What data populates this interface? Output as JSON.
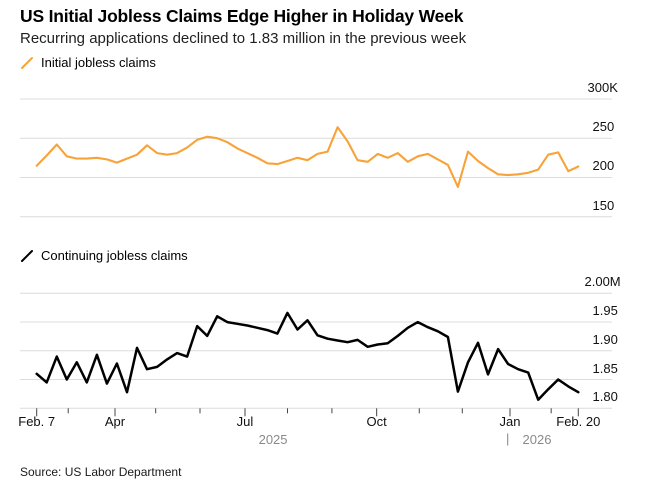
{
  "header": {
    "title": "US Initial Jobless Claims Edge Higher in Holiday Week",
    "subtitle": "Recurring applications declined to 1.83 million in the previous week"
  },
  "source": "Source: US Labor Department",
  "colors": {
    "initial_line": "#F7A33A",
    "continuing_line": "#000000",
    "grid": "#DCDCDC",
    "tick": "#444444",
    "year_text": "#8A8A8A"
  },
  "xaxis": {
    "tick_labels": [
      {
        "label": "Feb. 7",
        "t": 0.0
      },
      {
        "label": "Apr",
        "t": 0.1446
      },
      {
        "label": "Jul",
        "t": 0.3846
      },
      {
        "label": "Oct",
        "t": 0.6277
      },
      {
        "label": "Jan",
        "t": 0.8739
      },
      {
        "label": "Feb. 20",
        "t": 1.0
      }
    ],
    "minor_ticks": [
      0.0582,
      0.2197,
      0.3015,
      0.4631,
      0.5451,
      0.7064,
      0.7858,
      0.9499
    ],
    "years": [
      {
        "label": "2025",
        "t": 0.4364
      },
      {
        "label": "2026",
        "t": 0.9238
      }
    ],
    "year_separator": "|",
    "year_separator_t": 0.8665
  },
  "chart_data": [
    {
      "type": "line",
      "name": "Initial jobless claims",
      "unit": "thousands of claims (K)",
      "frequency": "weekly",
      "x_start": "Feb. 7, 2025",
      "x_end": "Feb. 20, 2026",
      "color": "#F7A33A",
      "ylim": [
        150,
        300
      ],
      "grid": true,
      "legend_position": "top-left",
      "yticks": [
        {
          "value": 300,
          "label": "300K"
        },
        {
          "value": 250,
          "label": "250"
        },
        {
          "value": 200,
          "label": "200"
        },
        {
          "value": 150,
          "label": "150"
        }
      ],
      "values": [
        215,
        228,
        242,
        227,
        224,
        224,
        225,
        223,
        219,
        224,
        229,
        241,
        231,
        229,
        231,
        238,
        248,
        252,
        250,
        245,
        237,
        231,
        225,
        218,
        217,
        221,
        225,
        222,
        230,
        233,
        264,
        246,
        222,
        220,
        230,
        225,
        231,
        220,
        227,
        230,
        223,
        216,
        188,
        233,
        221,
        212,
        204,
        203,
        204,
        206,
        210,
        229,
        232,
        208,
        214
      ]
    },
    {
      "type": "line",
      "name": "Continuing jobless claims",
      "unit": "millions of claims (M)",
      "frequency": "weekly",
      "x_start": "Feb. 7, 2025",
      "x_end": "Feb. 20, 2026",
      "color": "#000000",
      "ylim": [
        1.8,
        2.0
      ],
      "grid": true,
      "legend_position": "top-left",
      "yticks": [
        {
          "value": 2.0,
          "label": "2.00M"
        },
        {
          "value": 1.95,
          "label": "1.95"
        },
        {
          "value": 1.9,
          "label": "1.90"
        },
        {
          "value": 1.85,
          "label": "1.85"
        },
        {
          "value": 1.8,
          "label": "1.80"
        }
      ],
      "values": [
        1.86,
        1.845,
        1.89,
        1.85,
        1.88,
        1.845,
        1.893,
        1.843,
        1.878,
        1.828,
        1.905,
        1.868,
        1.872,
        1.885,
        1.896,
        1.89,
        1.943,
        1.926,
        1.96,
        1.95,
        1.947,
        1.944,
        1.94,
        1.936,
        1.93,
        1.966,
        1.937,
        1.953,
        1.927,
        1.921,
        1.918,
        1.915,
        1.919,
        1.907,
        1.911,
        1.913,
        1.926,
        1.94,
        1.95,
        1.941,
        1.934,
        1.924,
        1.829,
        1.88,
        1.914,
        1.859,
        1.903,
        1.877,
        1.868,
        1.862,
        1.815,
        1.833,
        1.85,
        1.838,
        1.828
      ]
    }
  ]
}
